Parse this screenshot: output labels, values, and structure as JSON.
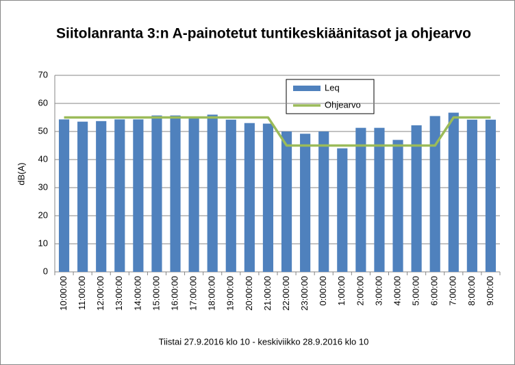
{
  "chart_data": {
    "type": "bar",
    "title": "Siitolanranta 3:n A-painotetut  tuntikeskiäänitasot ja ohjearvo",
    "x_label": "Tiistai  27.9.2016 klo 10 - keskiviikko 28.9.2016 klo 10",
    "y_label": "dB(A)",
    "categories": [
      "10:00:00",
      "11:00:00",
      "12:00:00",
      "13:00:00",
      "14:00:00",
      "15:00:00",
      "16:00:00",
      "17:00:00",
      "18:00:00",
      "19:00:00",
      "20:00:00",
      "21:00:00",
      "22:00:00",
      "23:00:00",
      "0:00:00",
      "1:00:00",
      "2:00:00",
      "3:00:00",
      "4:00:00",
      "5:00:00",
      "6:00:00",
      "7:00:00",
      "8:00:00",
      "9:00:00"
    ],
    "series": [
      {
        "name": "Leq",
        "kind": "bar",
        "color": "#4f81bd",
        "values": [
          54.3,
          53.5,
          53.7,
          54.3,
          54.3,
          55.7,
          55.7,
          54.8,
          56,
          54.2,
          53,
          52.8,
          50,
          49.2,
          50,
          44,
          51.3,
          51.3,
          47,
          52.2,
          55.5,
          56.7,
          54.2,
          54.2
        ]
      },
      {
        "name": "Ohjearvo",
        "kind": "line",
        "color": "#9bbb59",
        "values": [
          55,
          55,
          55,
          55,
          55,
          55,
          55,
          55,
          55,
          55,
          55,
          55,
          45,
          45,
          45,
          45,
          45,
          45,
          45,
          45,
          45,
          55,
          55,
          55
        ]
      }
    ],
    "ylim": [
      0,
      70
    ],
    "yticks": [
      0,
      10,
      20,
      30,
      40,
      50,
      60,
      70
    ],
    "grid": true
  }
}
